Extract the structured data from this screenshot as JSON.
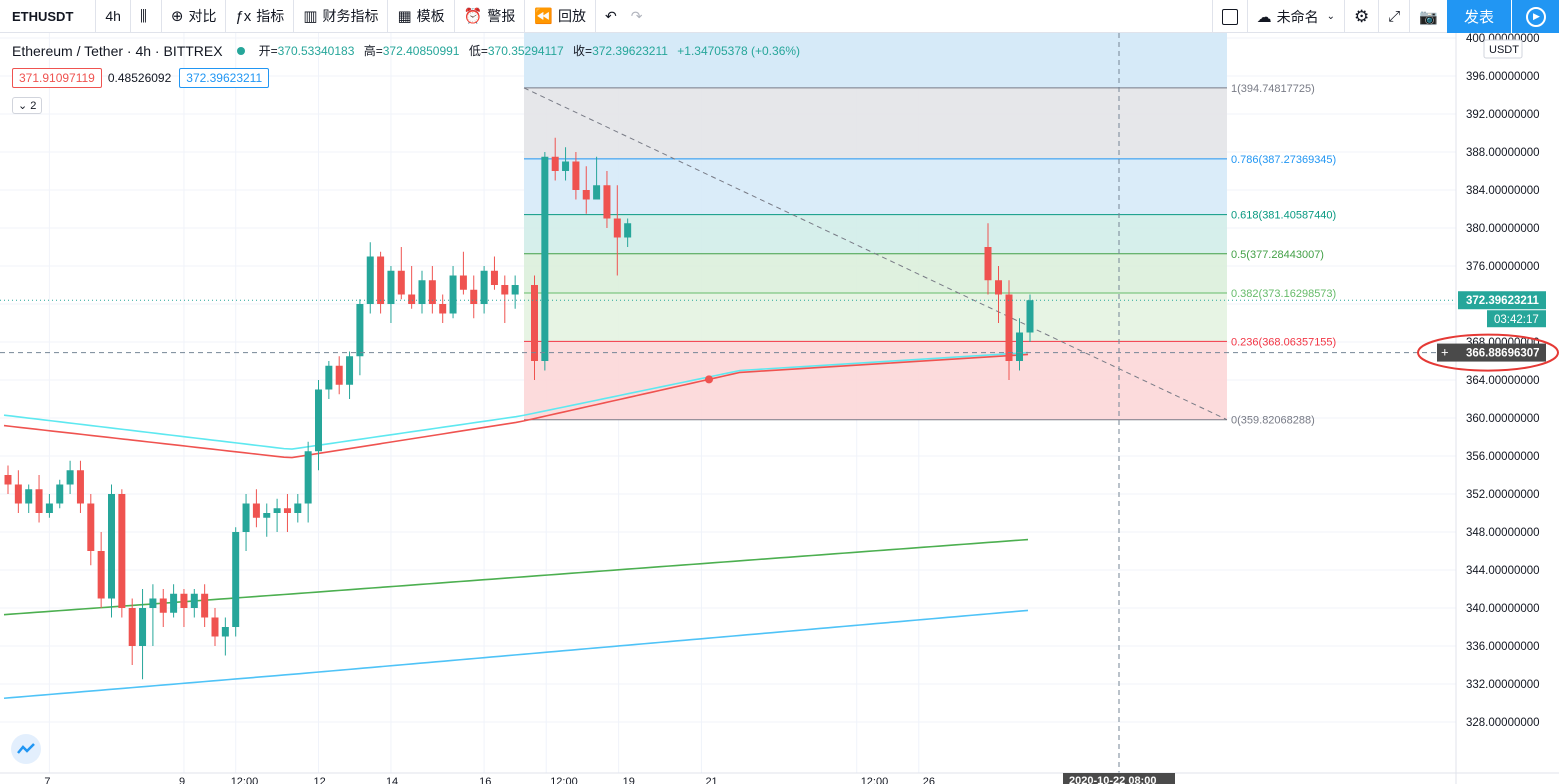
{
  "toolbar": {
    "symbol": "ETHUSDT",
    "interval": "4h",
    "items": [
      {
        "icon": "candles-icon",
        "glyph": "⫼",
        "label": ""
      },
      {
        "icon": "compare-icon",
        "glyph": "⊕",
        "label": "对比"
      },
      {
        "icon": "indicators-icon",
        "glyph": "ƒx",
        "label": "指标"
      },
      {
        "icon": "financials-icon",
        "glyph": "▥",
        "label": "财务指标"
      },
      {
        "icon": "templates-icon",
        "glyph": "▦",
        "label": "模板"
      },
      {
        "icon": "alert-icon",
        "glyph": "⏰",
        "label": "警报"
      },
      {
        "icon": "replay-icon",
        "glyph": "⏪",
        "label": "回放"
      }
    ],
    "layout_name": "未命名",
    "publish_label": "发表"
  },
  "legend": {
    "title": "Ethereum / Tether · 4h · BITTREX",
    "open_label": "开=",
    "open": "370.53340183",
    "high_label": "高=",
    "high": "372.40850991",
    "low_label": "低=",
    "low": "370.35294117",
    "close_label": "收=",
    "close": "372.39623211",
    "change": "+1.34705378 (+0.36%)"
  },
  "indicators": {
    "v1": "371.91097119",
    "v2": "0.48526092",
    "v3": "372.39623211",
    "collapse_label": "2"
  },
  "colors": {
    "up": "#26a69a",
    "down": "#ef5350",
    "ma_cyan": "#5ee8f0",
    "ma_red": "#ef5350",
    "ma_green": "#4caf50",
    "ma_blue": "#4fc3f7",
    "accent": "#2196f3"
  },
  "chart_data": {
    "type": "candlestick",
    "currency_label": "USDT",
    "y_ticks": [
      "400.00000000",
      "396.00000000",
      "392.00000000",
      "388.00000000",
      "384.00000000",
      "380.00000000",
      "376.00000000",
      "372.00000000",
      "368.00000000",
      "364.00000000",
      "360.00000000",
      "356.00000000",
      "352.00000000",
      "348.00000000",
      "344.00000000",
      "340.00000000",
      "336.00000000",
      "332.00000000",
      "328.00000000"
    ],
    "ylim": [
      326,
      402
    ],
    "x_ticks": [
      {
        "label": "7",
        "bar": 4
      },
      {
        "label": "9",
        "bar": 17
      },
      {
        "label": "12:00",
        "bar": 22
      },
      {
        "label": "12",
        "bar": 30
      },
      {
        "label": "14",
        "bar": 37
      },
      {
        "label": "16",
        "bar": 46
      },
      {
        "label": "12:00",
        "bar": 52
      },
      {
        "label": "19",
        "bar": 59
      },
      {
        "label": "21",
        "bar": 67
      },
      {
        "label": "12:00",
        "bar": 82
      },
      {
        "label": "26",
        "bar": 88
      }
    ],
    "last_price": "372.39623211",
    "countdown": "03:42:17",
    "crosshair_price": "366.88696307",
    "crosshair_time": "2020-10-22   08:00",
    "crosshair_bar": 73,
    "candles": [
      [
        354.0,
        355.0,
        352.0,
        353.0
      ],
      [
        353.0,
        354.5,
        350.0,
        351.0
      ],
      [
        351.0,
        353.0,
        350.0,
        352.5
      ],
      [
        352.5,
        354.0,
        349.0,
        350.0
      ],
      [
        350.0,
        352.0,
        349.5,
        351.0
      ],
      [
        351.0,
        353.5,
        350.5,
        353.0
      ],
      [
        353.0,
        355.5,
        352.0,
        354.5
      ],
      [
        354.5,
        355.5,
        350.0,
        351.0
      ],
      [
        351.0,
        352.0,
        344.5,
        346.0
      ],
      [
        346.0,
        348.0,
        340.0,
        341.0
      ],
      [
        341.0,
        353.0,
        339.0,
        352.0
      ],
      [
        352.0,
        352.5,
        339.0,
        340.0
      ],
      [
        340.0,
        341.0,
        334.0,
        336.0
      ],
      [
        336.0,
        342.0,
        332.5,
        340.0
      ],
      [
        340.0,
        342.5,
        336.0,
        341.0
      ],
      [
        341.0,
        342.0,
        338.0,
        339.5
      ],
      [
        339.5,
        342.5,
        339.0,
        341.5
      ],
      [
        341.5,
        342.0,
        338.0,
        340.0
      ],
      [
        340.0,
        342.0,
        339.0,
        341.5
      ],
      [
        341.5,
        342.5,
        338.0,
        339.0
      ],
      [
        339.0,
        340.0,
        336.0,
        337.0
      ],
      [
        337.0,
        339.0,
        335.0,
        338.0
      ],
      [
        338.0,
        348.5,
        337.0,
        348.0
      ],
      [
        348.0,
        352.0,
        346.0,
        351.0
      ],
      [
        351.0,
        352.5,
        348.5,
        349.5
      ],
      [
        349.5,
        351.0,
        347.5,
        350.0
      ],
      [
        350.0,
        351.5,
        348.0,
        350.5
      ],
      [
        350.5,
        352.0,
        348.0,
        350.0
      ],
      [
        350.0,
        352.0,
        349.0,
        351.0
      ],
      [
        351.0,
        357.5,
        349.0,
        356.5
      ],
      [
        356.5,
        364.0,
        354.5,
        363.0
      ],
      [
        363.0,
        366.0,
        362.0,
        365.5
      ],
      [
        365.5,
        366.5,
        362.5,
        363.5
      ],
      [
        363.5,
        367.0,
        362.0,
        366.5
      ],
      [
        366.5,
        372.5,
        364.5,
        372.0
      ],
      [
        372.0,
        378.5,
        371.0,
        377.0
      ],
      [
        377.0,
        377.5,
        371.0,
        372.0
      ],
      [
        372.0,
        376.0,
        370.0,
        375.5
      ],
      [
        375.5,
        378.0,
        372.5,
        373.0
      ],
      [
        373.0,
        376.0,
        371.5,
        372.0
      ],
      [
        372.0,
        375.5,
        371.0,
        374.5
      ],
      [
        374.5,
        376.0,
        371.0,
        372.0
      ],
      [
        372.0,
        373.0,
        370.0,
        371.0
      ],
      [
        371.0,
        376.0,
        370.5,
        375.0
      ],
      [
        375.0,
        377.5,
        373.0,
        373.5
      ],
      [
        373.5,
        375.0,
        370.5,
        372.0
      ],
      [
        372.0,
        376.0,
        371.0,
        375.5
      ],
      [
        375.5,
        377.0,
        373.5,
        374.0
      ],
      [
        374.0,
        375.0,
        370.0,
        373.0
      ],
      [
        373.0,
        375.0,
        371.5,
        374.0
      ],
      [
        374.0,
        375.0,
        364.0,
        366.0
      ],
      [
        366.0,
        388.0,
        365.0,
        387.5
      ],
      [
        387.5,
        389.5,
        385.0,
        386.0
      ],
      [
        386.0,
        388.5,
        385.0,
        387.0
      ],
      [
        387.0,
        388.0,
        383.0,
        384.0
      ],
      [
        384.0,
        386.5,
        381.5,
        383.0
      ],
      [
        383.0,
        387.5,
        383.0,
        384.5
      ],
      [
        384.5,
        386.0,
        380.0,
        381.0
      ],
      [
        381.0,
        384.5,
        375.0,
        379.0
      ],
      [
        379.0,
        381.0,
        378.0,
        380.5
      ]
    ]
  },
  "fib": {
    "levels": [
      {
        "ratio": "1",
        "label": "1(394.74817725)",
        "price": 394.74817725,
        "color": "#787b86"
      },
      {
        "ratio": "0.786",
        "label": "0.786(387.27369345)",
        "price": 387.27369345,
        "color": "#2196f3"
      },
      {
        "ratio": "0.618",
        "label": "0.618(381.40587440)",
        "price": 381.4058744,
        "color": "#089981"
      },
      {
        "ratio": "0.5",
        "label": "0.5(377.28443007)",
        "price": 377.28443007,
        "color": "#43a047"
      },
      {
        "ratio": "0.382",
        "label": "0.382(373.16298573)",
        "price": 373.16298573,
        "color": "#66bb6a"
      },
      {
        "ratio": "0.236",
        "label": "0.236(368.06357155)",
        "price": 368.06357155,
        "color": "#f23645"
      },
      {
        "ratio": "0",
        "label": "0(359.82068288)",
        "price": 359.82068288,
        "color": "#787b86"
      }
    ]
  }
}
